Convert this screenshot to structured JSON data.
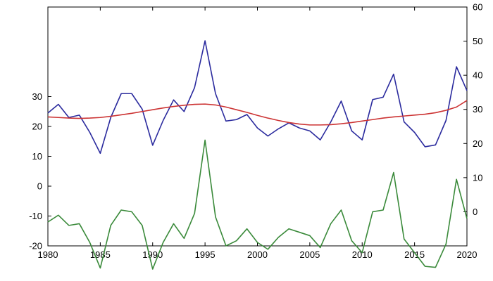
{
  "chart_data": {
    "type": "line",
    "title": "",
    "xlabel": "",
    "ylabel": "",
    "xlim": [
      1980,
      2020
    ],
    "x_ticks": [
      1980,
      1985,
      1990,
      1995,
      2000,
      2005,
      2010,
      2015,
      2020
    ],
    "x_tick_labels": [
      "1980",
      "1985",
      "1990",
      "1995",
      "2000",
      "2005",
      "2010",
      "2015",
      "2020"
    ],
    "left_axis": {
      "ylim": [
        -20,
        60
      ],
      "ticks": [
        -20,
        -10,
        0,
        10,
        20,
        30
      ],
      "tick_labels": [
        "-20",
        "-10",
        "0",
        "10",
        "20",
        "30"
      ]
    },
    "right_axis": {
      "ylim": [
        -10,
        60
      ],
      "ticks": [
        0,
        10,
        20,
        30,
        40,
        50,
        60
      ],
      "tick_labels": [
        "0",
        "10",
        "20",
        "30",
        "40",
        "50",
        "60"
      ]
    },
    "series": [
      {
        "axis": "left",
        "color": "#2b2b9e",
        "x": [
          1980,
          1981,
          1982,
          1983,
          1984,
          1985,
          1986,
          1987,
          1988,
          1989,
          1990,
          1991,
          1992,
          1993,
          1994,
          1995,
          1996,
          1997,
          1998,
          1999,
          2000,
          2001,
          2002,
          2003,
          2004,
          2005,
          2006,
          2007,
          2008,
          2009,
          2010,
          2011,
          2012,
          2013,
          2014,
          2015,
          2016,
          2017,
          2018,
          2019,
          2020
        ],
        "values": [
          24.5,
          27.4,
          23.0,
          23.8,
          18.0,
          11.0,
          23.0,
          31.0,
          31.0,
          25.8,
          13.7,
          22.0,
          28.9,
          25.0,
          33.0,
          48.7,
          31.0,
          21.8,
          22.3,
          24.0,
          19.5,
          16.8,
          19.2,
          21.2,
          19.5,
          18.5,
          15.5,
          21.5,
          28.5,
          18.5,
          15.5,
          29.0,
          29.8,
          37.5,
          21.5,
          18.0,
          13.2,
          13.8,
          22.0,
          40.0,
          32.0
        ]
      },
      {
        "axis": "left",
        "color": "#cc3333",
        "x": [
          1980,
          1981,
          1982,
          1983,
          1984,
          1985,
          1986,
          1987,
          1988,
          1989,
          1990,
          1991,
          1992,
          1993,
          1994,
          1995,
          1996,
          1997,
          1998,
          1999,
          2000,
          2001,
          2002,
          2003,
          2004,
          2005,
          2006,
          2007,
          2008,
          2009,
          2010,
          2011,
          2012,
          2013,
          2014,
          2015,
          2016,
          2017,
          2018,
          2019,
          2020
        ],
        "values": [
          23.2,
          23.0,
          22.8,
          22.7,
          22.8,
          23.0,
          23.4,
          23.9,
          24.4,
          25.0,
          25.6,
          26.2,
          26.7,
          27.1,
          27.4,
          27.5,
          27.2,
          26.5,
          25.6,
          24.7,
          23.7,
          22.8,
          22.0,
          21.3,
          20.8,
          20.5,
          20.5,
          20.6,
          20.9,
          21.3,
          21.8,
          22.3,
          22.8,
          23.2,
          23.5,
          23.8,
          24.1,
          24.6,
          25.4,
          26.5,
          28.7
        ]
      },
      {
        "axis": "right",
        "color": "#3a8a3a",
        "x": [
          1980,
          1981,
          1982,
          1983,
          1984,
          1985,
          1986,
          1987,
          1988,
          1989,
          1990,
          1991,
          1992,
          1993,
          1994,
          1995,
          1996,
          1997,
          1998,
          1999,
          2000,
          2001,
          2002,
          2003,
          2004,
          2005,
          2006,
          2007,
          2008,
          2009,
          2010,
          2011,
          2012,
          2013,
          2014,
          2015,
          2016,
          2017,
          2018,
          2019,
          2020
        ],
        "values": [
          -3.0,
          -1.0,
          -4.0,
          -3.5,
          -9.0,
          -16.5,
          -4.0,
          0.5,
          0.0,
          -4.0,
          -16.8,
          -9.0,
          -3.5,
          -7.8,
          -0.5,
          21.0,
          -1.5,
          -10.0,
          -8.5,
          -5.0,
          -9.0,
          -11.0,
          -7.5,
          -5.0,
          -6.0,
          -7.0,
          -10.5,
          -3.5,
          0.5,
          -8.5,
          -12.0,
          0.0,
          0.5,
          11.5,
          -8.0,
          -12.0,
          -16.0,
          -16.3,
          -9.5,
          9.5,
          -2.0
        ]
      }
    ]
  }
}
